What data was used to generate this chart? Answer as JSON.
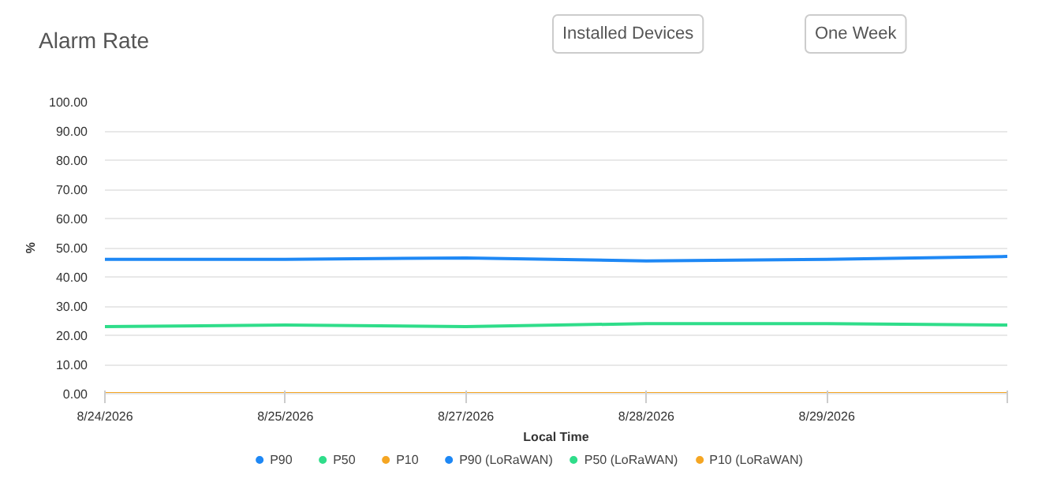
{
  "chart_data": {
    "type": "line",
    "title": "Alarm Rate",
    "xlabel": "Local Time",
    "ylabel": "%",
    "annotations": [
      "Installed Devices",
      "One Week"
    ],
    "categories": [
      "8/24/2026",
      "8/25/2026",
      "8/27/2026",
      "8/28/2026",
      "8/29/2026",
      null
    ],
    "ylim": [
      0,
      100
    ],
    "yticks": [
      {
        "value": 0,
        "label": "0.00"
      },
      {
        "value": 10,
        "label": "10.00"
      },
      {
        "value": 20,
        "label": "20.00"
      },
      {
        "value": 30,
        "label": "30.00"
      },
      {
        "value": 40,
        "label": "40.00"
      },
      {
        "value": 50,
        "label": "50.00"
      },
      {
        "value": 60,
        "label": "60.00"
      },
      {
        "value": 70,
        "label": "70.00"
      },
      {
        "value": 80,
        "label": "80.00"
      },
      {
        "value": 90,
        "label": "90.00"
      },
      {
        "value": 100,
        "label": "100.00"
      }
    ],
    "series": [
      {
        "name": "P90",
        "color": "#1e88f5",
        "values": [
          null,
          null,
          null,
          null,
          null,
          null
        ]
      },
      {
        "name": "P50",
        "color": "#2fdd8a",
        "values": [
          null,
          null,
          null,
          null,
          null,
          null
        ]
      },
      {
        "name": "P10",
        "color": "#f5a623",
        "values": [
          null,
          null,
          null,
          null,
          null,
          null
        ]
      },
      {
        "name": "P90 (LoRaWAN)",
        "color": "#1e88f5",
        "values": [
          46,
          46,
          46.5,
          45.5,
          46,
          47
        ]
      },
      {
        "name": "P50 (LoRaWAN)",
        "color": "#2fdd8a",
        "values": [
          23,
          23.5,
          23,
          24,
          24,
          23.5
        ]
      },
      {
        "name": "P10 (LoRaWAN)",
        "color": "#f5a623",
        "values": [
          0,
          0,
          0,
          0,
          0,
          0
        ]
      }
    ],
    "grid": "y",
    "legend": "bottom",
    "marker": "none",
    "line_style": "solid"
  }
}
